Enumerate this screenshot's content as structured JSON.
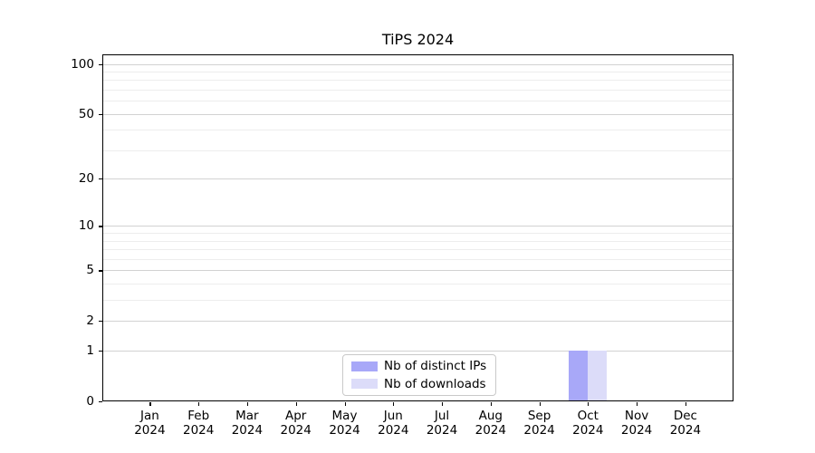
{
  "chart_data": {
    "type": "bar",
    "title": "TiPS 2024",
    "categories": [
      "Jan 2024",
      "Feb 2024",
      "Mar 2024",
      "Apr 2024",
      "May 2024",
      "Jun 2024",
      "Jul 2024",
      "Aug 2024",
      "Sep 2024",
      "Oct 2024",
      "Nov 2024",
      "Dec 2024"
    ],
    "series": [
      {
        "name": "Nb of distinct IPs",
        "color": "#a8a8f8",
        "values": [
          0,
          0,
          0,
          0,
          0,
          0,
          0,
          0,
          0,
          1,
          0,
          0
        ]
      },
      {
        "name": "Nb of downloads",
        "color": "#dcdcf9",
        "values": [
          0,
          0,
          0,
          0,
          0,
          0,
          0,
          0,
          0,
          1,
          0,
          0
        ]
      }
    ],
    "xlabel": "",
    "ylabel": "",
    "y_scale": "log1p",
    "ylim": [
      0,
      114
    ],
    "y_major_ticks": [
      0,
      1,
      2,
      5,
      10,
      20,
      50,
      100
    ],
    "y_minor_ticks": [
      3,
      4,
      6,
      7,
      8,
      9,
      30,
      40,
      60,
      70,
      80,
      90
    ],
    "grid": "both",
    "legend_position": "lower center (inside plot)",
    "colors": {
      "major_grid": "#d2d2d2",
      "minor_grid": "#ededed",
      "axis": "#000000",
      "legend_border": "#c9c9c9",
      "background": "#ffffff"
    }
  }
}
